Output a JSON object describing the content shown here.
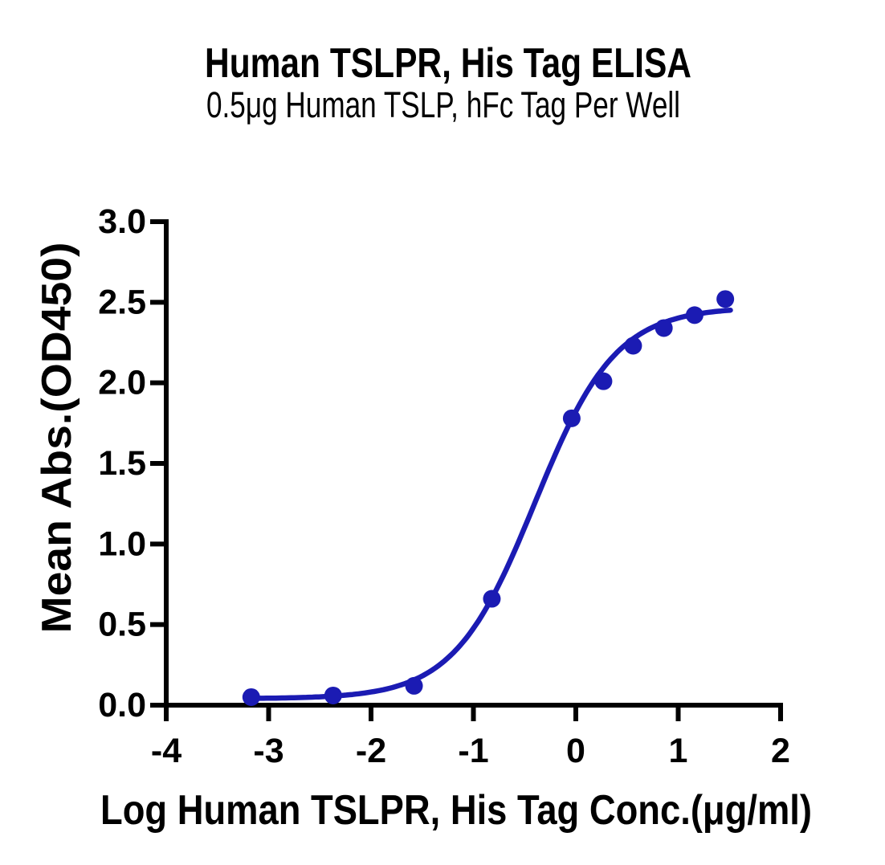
{
  "chart_data": {
    "type": "scatter",
    "title": "Human TSLPR, His Tag ELISA",
    "subtitle": "0.5μg Human TSLP, hFc Tag Per Well",
    "xlabel": "Log Human TSLPR, His Tag Conc.(μg/ml)",
    "ylabel": "Mean Abs.(OD450)",
    "xlim": [
      -4,
      2
    ],
    "ylim": [
      0,
      3
    ],
    "x_ticks": [
      -4,
      -3,
      -2,
      -1,
      0,
      1,
      2
    ],
    "x_tick_labels": [
      "-4",
      "-3",
      "-2",
      "-1",
      "0",
      "1",
      "2"
    ],
    "y_ticks": [
      0,
      0.5,
      1,
      1.5,
      2,
      2.5,
      3
    ],
    "y_tick_labels": [
      "0.0",
      "0.5",
      "1.0",
      "1.5",
      "2.0",
      "2.5",
      "3.0"
    ],
    "grid": false,
    "legend": null,
    "background_color": "#ffffff",
    "axis_color": "#000000",
    "series": [
      {
        "marker": "circle",
        "color": "#1b1bb3",
        "points": [
          {
            "x": -3.17,
            "y": 0.05
          },
          {
            "x": -2.37,
            "y": 0.06
          },
          {
            "x": -1.58,
            "y": 0.12
          },
          {
            "x": -0.82,
            "y": 0.66
          },
          {
            "x": -0.04,
            "y": 1.78
          },
          {
            "x": 0.27,
            "y": 2.01
          },
          {
            "x": 0.56,
            "y": 2.23
          },
          {
            "x": 0.86,
            "y": 2.34
          },
          {
            "x": 1.16,
            "y": 2.42
          },
          {
            "x": 1.46,
            "y": 2.52
          }
        ],
        "fit_curve": {
          "model": "4PL",
          "bottom": 0.04,
          "top": 2.47,
          "logEC50": -0.4,
          "hill": 1.1,
          "x_start": -3.17,
          "x_end": 1.51
        }
      }
    ]
  }
}
